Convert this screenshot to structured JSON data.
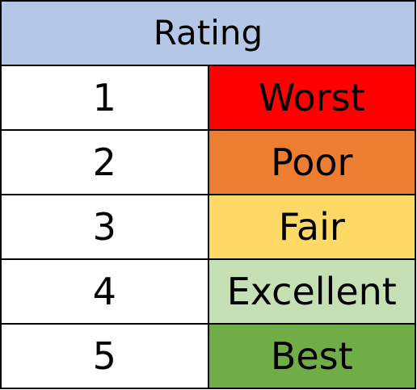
{
  "table": {
    "header": {
      "label": "Rating",
      "color": "#b4c7e7"
    },
    "rows": [
      {
        "number": "1",
        "label": "Worst",
        "color": "#ff0000"
      },
      {
        "number": "2",
        "label": "Poor",
        "color": "#ed7d31"
      },
      {
        "number": "3",
        "label": "Fair",
        "color": "#ffd966"
      },
      {
        "number": "4",
        "label": "Excellent",
        "color": "#c5e0b4"
      },
      {
        "number": "5",
        "label": "Best",
        "color": "#70ad47"
      }
    ]
  }
}
